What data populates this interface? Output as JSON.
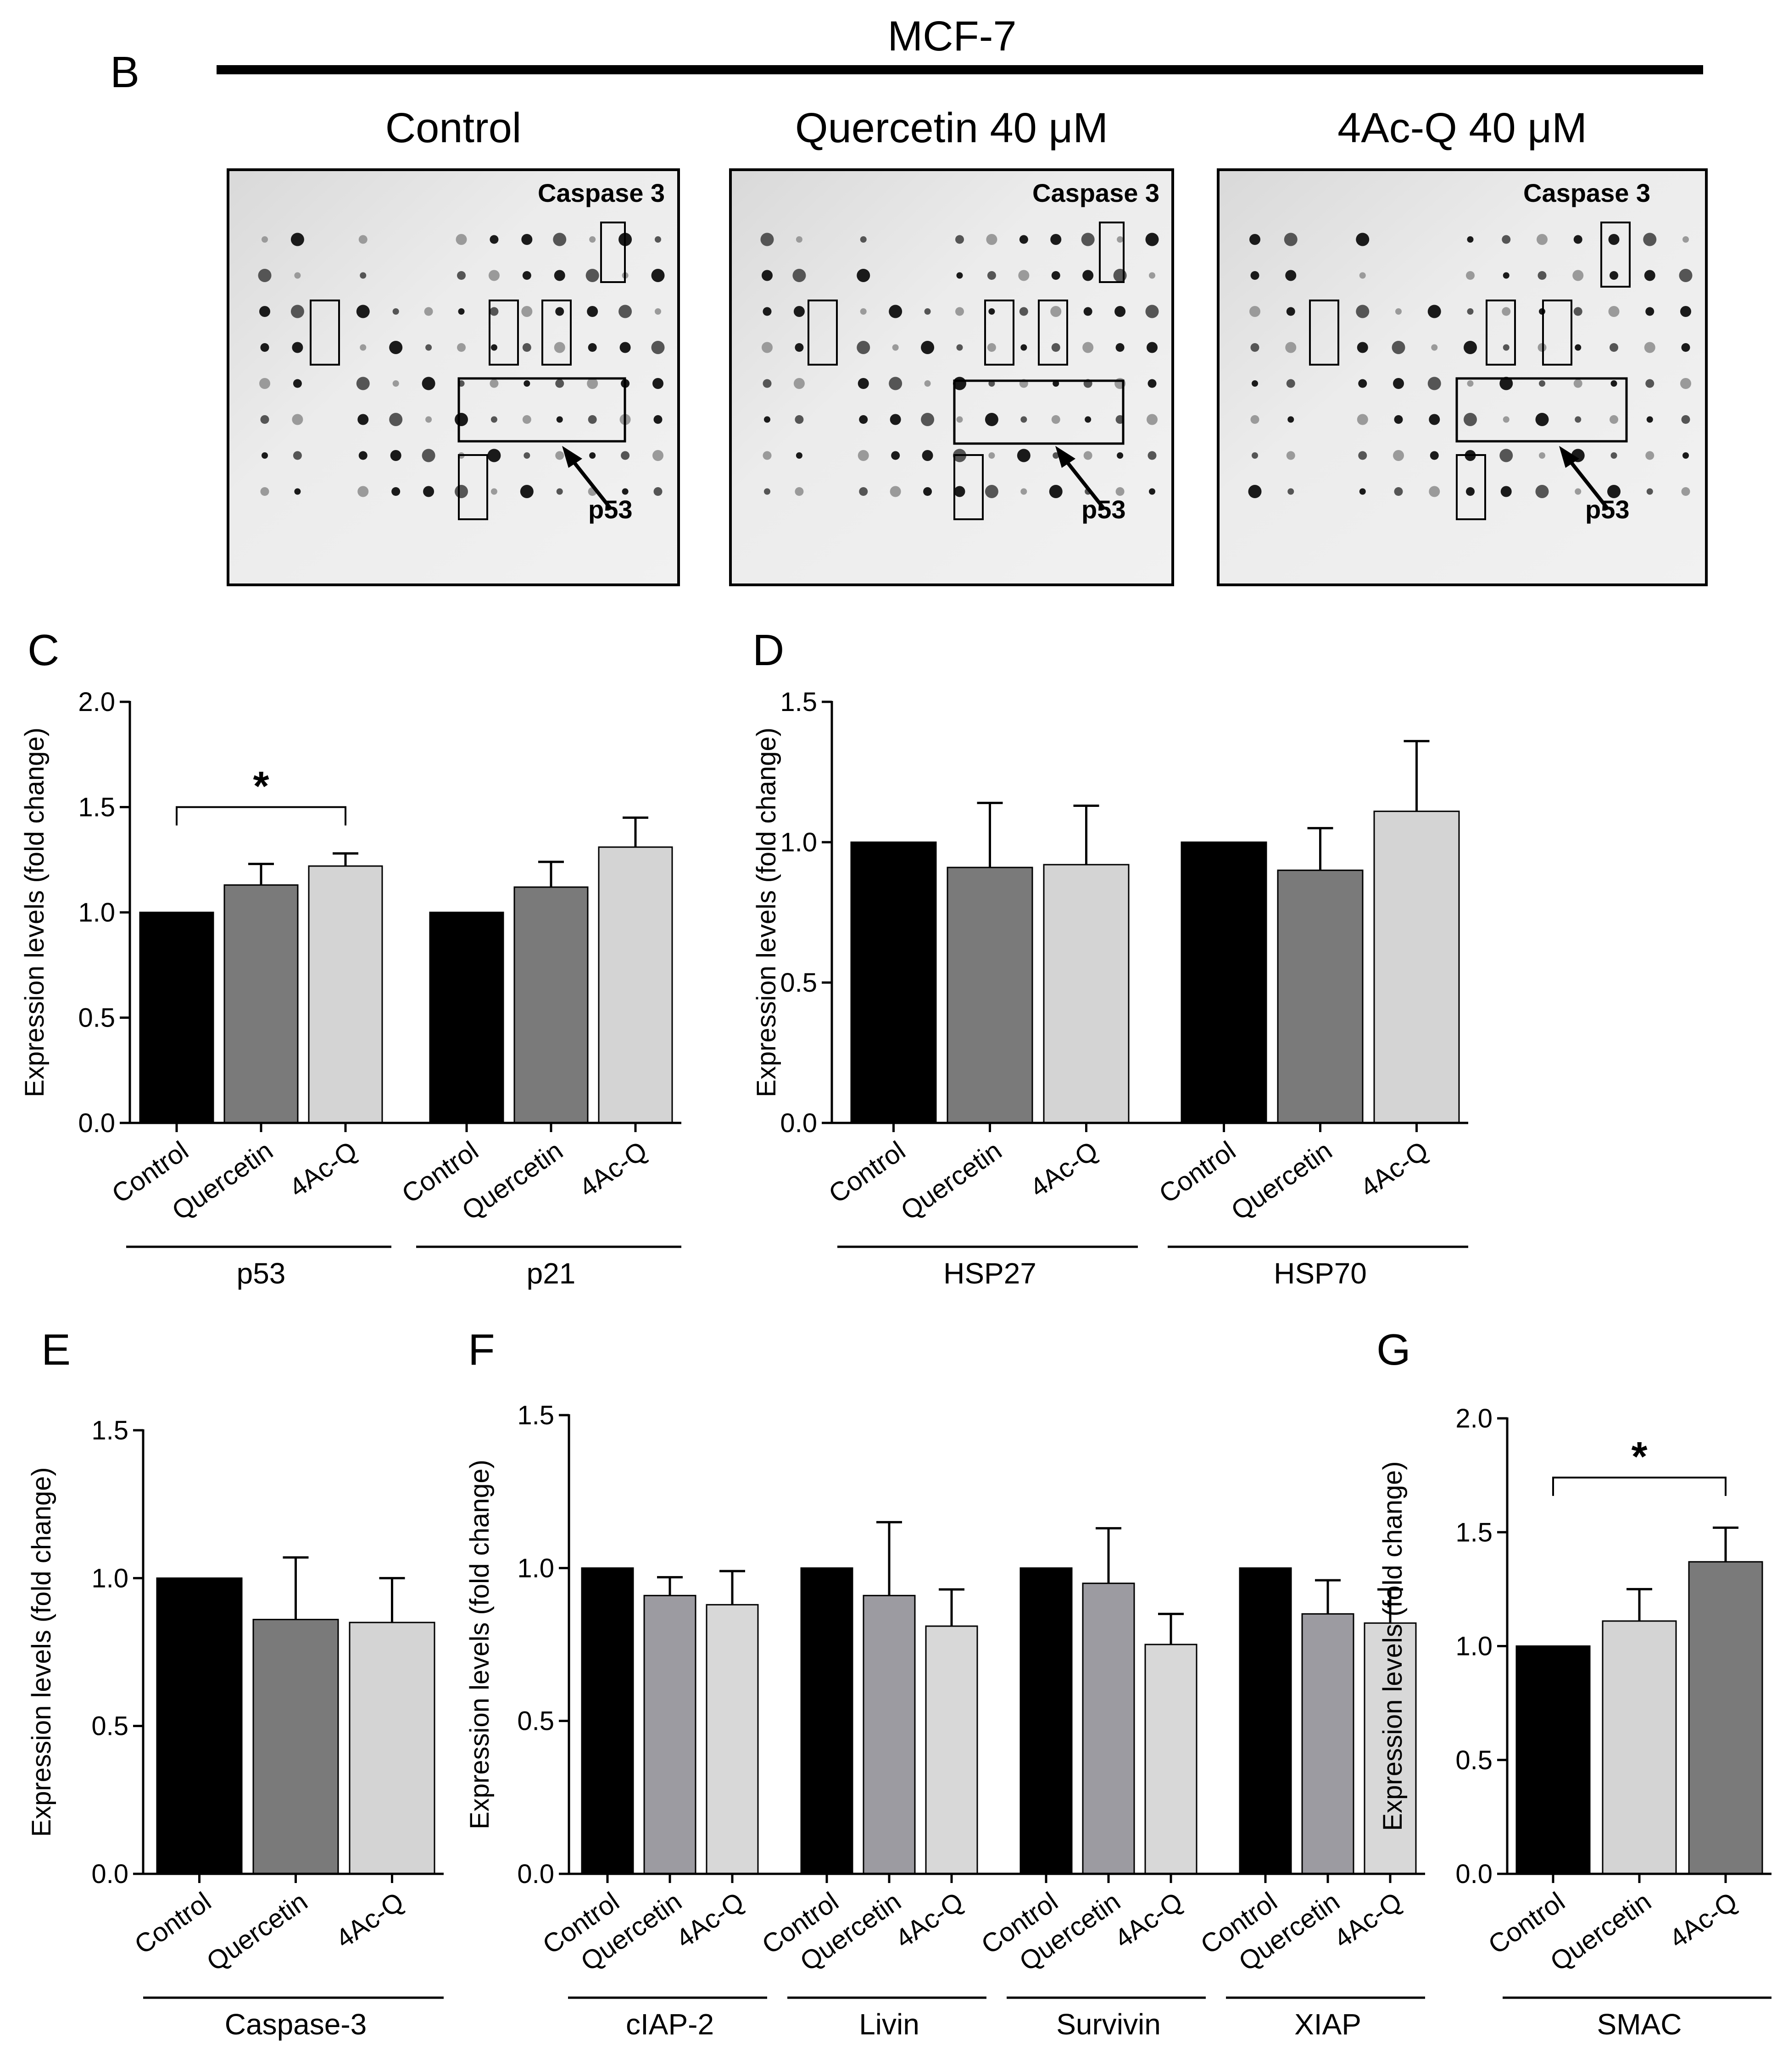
{
  "panel_b": {
    "letter": "B",
    "cell_line": "MCF-7",
    "membranes": [
      {
        "title": "Control",
        "caspase_label": "Caspase 3",
        "arrow_label": "p53"
      },
      {
        "title": "Quercetin 40 μM",
        "caspase_label": "Caspase 3",
        "arrow_label": "p53"
      },
      {
        "title": "4Ac-Q 40 μM",
        "caspase_label": "Caspase 3",
        "arrow_label": "p53"
      }
    ]
  },
  "chart_data": [
    {
      "id": "C",
      "type": "bar",
      "letter": "C",
      "ylabel": "Expression levels (fold change)",
      "ylim": [
        0,
        2.0
      ],
      "ticks": [
        "0.0",
        "0.5",
        "1.0",
        "1.5",
        "2.0"
      ],
      "categories": [
        "Control",
        "Quercetin",
        "4Ac-Q"
      ],
      "groups": [
        {
          "name": "p53",
          "values": [
            1.0,
            1.13,
            1.22
          ],
          "errors": [
            0,
            0.1,
            0.06
          ]
        },
        {
          "name": "p21",
          "values": [
            1.0,
            1.12,
            1.31
          ],
          "errors": [
            0,
            0.12,
            0.14
          ]
        }
      ],
      "colors": [
        "#000000",
        "#7a7a7a",
        "#d4d4d4"
      ],
      "significance": {
        "label": "*",
        "group": 0,
        "from": 0,
        "to": 2
      }
    },
    {
      "id": "D",
      "type": "bar",
      "letter": "D",
      "ylabel": "Expression levels (fold change)",
      "ylim": [
        0,
        1.5
      ],
      "ticks": [
        "0.0",
        "0.5",
        "1.0",
        "1.5"
      ],
      "categories": [
        "Control",
        "Quercetin",
        "4Ac-Q"
      ],
      "groups": [
        {
          "name": "HSP27",
          "values": [
            1.0,
            0.91,
            0.92
          ],
          "errors": [
            0,
            0.23,
            0.21
          ]
        },
        {
          "name": "HSP70",
          "values": [
            1.0,
            0.9,
            1.11
          ],
          "errors": [
            0,
            0.15,
            0.25
          ]
        }
      ],
      "colors": [
        "#000000",
        "#7a7a7a",
        "#d4d4d4"
      ]
    },
    {
      "id": "E",
      "type": "bar",
      "letter": "E",
      "ylabel": "Expression levels  (fold change)",
      "ylim": [
        0,
        1.5
      ],
      "ticks": [
        "0.0",
        "0.5",
        "1.0",
        "1.5"
      ],
      "categories": [
        "Control",
        "Quercetin",
        "4Ac-Q"
      ],
      "groups": [
        {
          "name": "Caspase-3",
          "values": [
            1.0,
            0.86,
            0.85
          ],
          "errors": [
            0,
            0.21,
            0.15
          ]
        }
      ],
      "colors": [
        "#000000",
        "#7a7a7a",
        "#d4d4d4"
      ]
    },
    {
      "id": "F",
      "type": "bar",
      "letter": "F",
      "ylabel": "Expression levels (fold change)",
      "ylim": [
        0,
        1.5
      ],
      "ticks": [
        "0.0",
        "0.5",
        "1.0",
        "1.5"
      ],
      "categories": [
        "Control",
        "Quercetin",
        "4Ac-Q"
      ],
      "groups": [
        {
          "name": "cIAP-2",
          "values": [
            1.0,
            0.91,
            0.88
          ],
          "errors": [
            0,
            0.06,
            0.11
          ]
        },
        {
          "name": "Livin",
          "values": [
            1.0,
            0.91,
            0.81
          ],
          "errors": [
            0,
            0.24,
            0.12
          ]
        },
        {
          "name": "Survivin",
          "values": [
            1.0,
            0.95,
            0.75
          ],
          "errors": [
            0,
            0.18,
            0.1
          ]
        },
        {
          "name": "XIAP",
          "values": [
            1.0,
            0.85,
            0.82
          ],
          "errors": [
            0,
            0.11,
            0.11
          ]
        }
      ],
      "colors": [
        "#000000",
        "#9c9ba1",
        "#d8d8d8"
      ]
    },
    {
      "id": "G",
      "type": "bar",
      "letter": "G",
      "ylabel": "Expression levels (fold change)",
      "ylim": [
        0,
        2.0
      ],
      "ticks": [
        "0.0",
        "0.5",
        "1.0",
        "1.5",
        "2.0"
      ],
      "categories": [
        "Control",
        "Quercetin",
        "4Ac-Q"
      ],
      "groups": [
        {
          "name": "SMAC",
          "values": [
            1.0,
            1.11,
            1.37
          ],
          "errors": [
            0,
            0.14,
            0.15
          ]
        }
      ],
      "colors": [
        "#000000",
        "#d4d4d4",
        "#7a7a7a"
      ],
      "significance": {
        "label": "*",
        "group": 0,
        "from": 0,
        "to": 2
      }
    }
  ]
}
